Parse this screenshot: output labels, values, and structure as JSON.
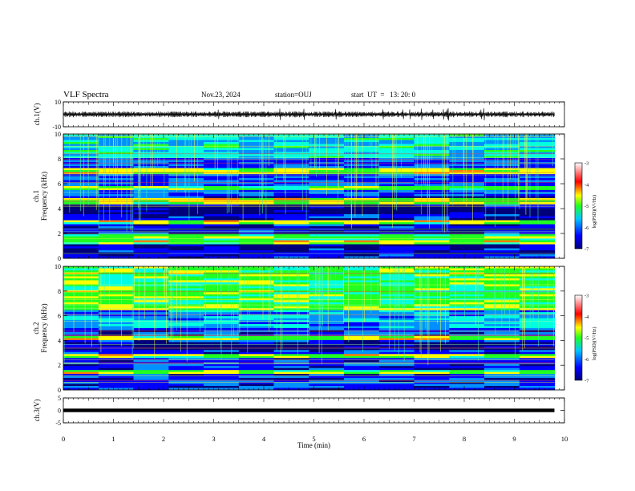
{
  "header": {
    "title": "VLF Spectra",
    "date": "Nov.23, 2024",
    "station": "station=OUJ",
    "start": "start  UT  =   13: 20: 0"
  },
  "chart_data": {
    "type": "heatmap",
    "title": "VLF Spectra",
    "xlabel": "Time (min)",
    "xlim": [
      0,
      10
    ],
    "x_ticks": [
      "0",
      "1",
      "2",
      "3",
      "4",
      "5",
      "6",
      "7",
      "8",
      "9",
      "10"
    ],
    "panels": [
      {
        "name": "ch1-waveform",
        "type": "line",
        "ylabel": "ch.1(V)",
        "ylim": [
          -10,
          10
        ],
        "y_ticks": [
          "10",
          "-10"
        ],
        "trace_level": 0,
        "data_end_min": 9.8
      },
      {
        "name": "ch1-spectrogram",
        "type": "heatmap",
        "ylabel_top": "ch.1",
        "ylabel": "Frequency (kHz)",
        "ylim": [
          0,
          10
        ],
        "y_ticks": [
          "0",
          "2",
          "4",
          "6",
          "8",
          "10"
        ],
        "colorbar": {
          "label": "log(PSD)(V²/Hz)",
          "ticks": [
            "-3",
            "-4",
            "-5",
            "-6",
            "-7"
          ],
          "range": [
            -7,
            -3
          ]
        },
        "data_end_min": 9.8,
        "bright_bands_khz": [
          1.3,
          1.7,
          2.9,
          4.6,
          5.7,
          6.9,
          7.1
        ],
        "dark_band_khz": [
          3.6,
          4.2
        ]
      },
      {
        "name": "ch2-spectrogram",
        "type": "heatmap",
        "ylabel_top": "ch.2",
        "ylabel": "Frequency (kHz)",
        "ylim": [
          0,
          10
        ],
        "y_ticks": [
          "0",
          "2",
          "4",
          "6",
          "8",
          "10"
        ],
        "colorbar": {
          "label": "log(PSD)(V²/Hz)",
          "ticks": [
            "-3",
            "-4",
            "-5",
            "-6",
            "-7"
          ],
          "range": [
            -7,
            -3
          ]
        },
        "data_end_min": 9.8,
        "bright_bands_khz": [
          1.4,
          2.8,
          4.2,
          6.7
        ],
        "dark_band_khz": [
          3.2,
          3.8
        ]
      },
      {
        "name": "ch3-waveform",
        "type": "line",
        "ylabel": "ch.3(V)",
        "ylim": [
          -5,
          5
        ],
        "y_ticks": [
          "5",
          "0",
          "-5"
        ],
        "trace_level": 0,
        "data_end_min": 9.8
      }
    ]
  },
  "colors": {
    "colormap": [
      "#00007a",
      "#0000ff",
      "#0090ff",
      "#00ffe0",
      "#20ff20",
      "#ffff00",
      "#ff8000",
      "#ff0000",
      "#ffffff"
    ]
  }
}
